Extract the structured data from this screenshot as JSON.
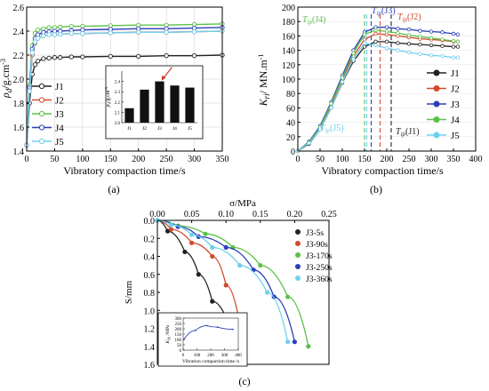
{
  "chart_data": [
    {
      "id": "a",
      "type": "line",
      "panel_label": "(a)",
      "xlabel": "Vibratory compaction time/s",
      "ylabel": "ρd/g.cm⁻³",
      "ylabel_main": "ρ",
      "ylabel_sub": "d",
      "ylabel_unit": "/g.cm",
      "ylabel_sup": "-3",
      "xlim": [
        0,
        350
      ],
      "ylim": [
        1.4,
        2.6
      ],
      "xticks": [
        0,
        50,
        100,
        150,
        200,
        250,
        300,
        350
      ],
      "yticks": [
        1.4,
        1.6,
        1.8,
        2.0,
        2.2,
        2.4,
        2.6
      ],
      "legend_position": "left-middle",
      "series": [
        {
          "name": "J1",
          "color": "#222222",
          "x": [
            0,
            5,
            10,
            15,
            20,
            30,
            40,
            50,
            60,
            80,
            100,
            150,
            200,
            250,
            300,
            350
          ],
          "y": [
            1.45,
            1.8,
            2.04,
            2.12,
            2.15,
            2.17,
            2.175,
            2.18,
            2.18,
            2.185,
            2.185,
            2.19,
            2.19,
            2.195,
            2.195,
            2.2
          ]
        },
        {
          "name": "J2",
          "color": "#d24a2c",
          "x": [
            0,
            5,
            10,
            15,
            20,
            30,
            40,
            50,
            60,
            80,
            100,
            150,
            200,
            250,
            300,
            350
          ],
          "y": [
            1.45,
            1.9,
            2.2,
            2.3,
            2.34,
            2.36,
            2.37,
            2.37,
            2.375,
            2.38,
            2.38,
            2.385,
            2.39,
            2.39,
            2.395,
            2.4
          ]
        },
        {
          "name": "J3",
          "color": "#5cc04a",
          "x": [
            0,
            5,
            10,
            15,
            20,
            30,
            40,
            50,
            60,
            80,
            100,
            150,
            200,
            250,
            300,
            350
          ],
          "y": [
            1.45,
            1.95,
            2.28,
            2.38,
            2.41,
            2.42,
            2.43,
            2.43,
            2.435,
            2.44,
            2.44,
            2.445,
            2.45,
            2.45,
            2.455,
            2.46
          ]
        },
        {
          "name": "J4",
          "color": "#2b3fb8",
          "x": [
            0,
            5,
            10,
            15,
            20,
            30,
            40,
            50,
            60,
            80,
            100,
            150,
            200,
            250,
            300,
            350
          ],
          "y": [
            1.45,
            1.93,
            2.25,
            2.34,
            2.37,
            2.39,
            2.395,
            2.4,
            2.4,
            2.405,
            2.41,
            2.415,
            2.42,
            2.42,
            2.425,
            2.43
          ]
        },
        {
          "name": "J5",
          "color": "#6fd0ee",
          "x": [
            0,
            5,
            10,
            15,
            20,
            30,
            40,
            50,
            60,
            80,
            100,
            150,
            200,
            250,
            300,
            350
          ],
          "y": [
            1.45,
            1.9,
            2.22,
            2.31,
            2.34,
            2.36,
            2.37,
            2.37,
            2.375,
            2.38,
            2.38,
            2.385,
            2.39,
            2.39,
            2.395,
            2.4
          ]
        }
      ],
      "inset": {
        "type": "bar",
        "ylabel": "ρd/g.cm⁻³",
        "ylabel_main": "ρ",
        "ylabel_sub": "d",
        "ylabel_unit": "/g.cm",
        "ylabel_sup": "-3",
        "categories": [
          "J1",
          "J2",
          "J3",
          "J4",
          "J5"
        ],
        "values": [
          2.14,
          2.32,
          2.4,
          2.36,
          2.34
        ],
        "ylim": [
          2.0,
          2.5
        ],
        "yticks": [
          2.0,
          2.1,
          2.2,
          2.3,
          2.4
        ],
        "annotation": "arrow pointing to J3 bar"
      }
    },
    {
      "id": "b",
      "type": "line",
      "panel_label": "(b)",
      "xlabel": "Vibratory compaction time/s",
      "ylabel": "Kri/ MN.m⁻¹",
      "ylabel_main": "K",
      "ylabel_sub": "ri",
      "ylabel_unit": "/ MN.m",
      "ylabel_sup": "-1",
      "xlim": [
        0,
        400
      ],
      "ylim": [
        0,
        200
      ],
      "xticks": [
        0,
        50,
        100,
        150,
        200,
        250,
        300,
        350,
        400
      ],
      "yticks": [
        0,
        20,
        40,
        60,
        80,
        100,
        120,
        140,
        160,
        180,
        200
      ],
      "legend_position": "right-middle",
      "series": [
        {
          "name": "J1",
          "color": "#222222",
          "x": [
            0,
            25,
            50,
            75,
            100,
            125,
            150,
            175,
            200,
            225,
            250,
            275,
            300,
            325,
            350,
            360
          ],
          "y": [
            0,
            10,
            30,
            60,
            95,
            125,
            145,
            152,
            152,
            150,
            149,
            148,
            147,
            146,
            145,
            145
          ]
        },
        {
          "name": "J2",
          "color": "#d24a2c",
          "x": [
            0,
            25,
            50,
            75,
            100,
            125,
            150,
            175,
            200,
            225,
            250,
            275,
            300,
            325,
            350,
            360
          ],
          "y": [
            0,
            12,
            32,
            64,
            100,
            132,
            155,
            163,
            162,
            160,
            158,
            156,
            155,
            154,
            152,
            152
          ]
        },
        {
          "name": "J3",
          "color": "#2b3fb8",
          "x": [
            0,
            25,
            50,
            75,
            100,
            125,
            150,
            175,
            200,
            225,
            250,
            275,
            300,
            325,
            350,
            360
          ],
          "y": [
            0,
            13,
            35,
            68,
            105,
            140,
            165,
            172,
            172,
            170,
            169,
            167,
            166,
            165,
            163,
            162
          ]
        },
        {
          "name": "J4",
          "color": "#5cc04a",
          "x": [
            0,
            25,
            50,
            75,
            100,
            125,
            150,
            175,
            200,
            225,
            250,
            275,
            300,
            325,
            350,
            360
          ],
          "y": [
            0,
            12,
            33,
            66,
            102,
            136,
            162,
            168,
            166,
            164,
            161,
            159,
            157,
            155,
            153,
            152
          ]
        },
        {
          "name": "J5",
          "color": "#6fd0ee",
          "x": [
            0,
            25,
            50,
            75,
            100,
            125,
            150,
            175,
            200,
            225,
            250,
            275,
            300,
            325,
            350,
            360
          ],
          "y": [
            0,
            11,
            30,
            60,
            96,
            128,
            150,
            147,
            143,
            140,
            137,
            135,
            133,
            132,
            130,
            130
          ]
        }
      ],
      "markers": [
        {
          "label_main": "T",
          "label_sub": "ip",
          "label_series": "(J4)",
          "x": 150,
          "color": "#5cc04a"
        },
        {
          "label_main": "T",
          "label_sub": "ip",
          "label_series": "(J3)",
          "x": 165,
          "color": "#2b3fb8"
        },
        {
          "label_main": "T",
          "label_sub": "ip",
          "label_series": "(J2)",
          "x": 185,
          "color": "#d24a2c"
        },
        {
          "label_main": "T",
          "label_sub": "ip",
          "label_series": "(J5)",
          "x": 155,
          "color": "#6fd0ee"
        },
        {
          "label_main": "T",
          "label_sub": "ip",
          "label_series": "(J1)",
          "x": 210,
          "color": "#222222"
        }
      ]
    },
    {
      "id": "c",
      "type": "scatter",
      "panel_label": "(c)",
      "xlabel": "σ/MPa",
      "ylabel": "S/mm",
      "x_axis_position": "top",
      "y_axis_inverted": true,
      "xlim": [
        0,
        0.25
      ],
      "ylim": [
        0,
        1.6
      ],
      "xticks": [
        0.0,
        0.05,
        0.1,
        0.15,
        0.2,
        0.25
      ],
      "xticklabels": [
        "0.00",
        "0.05",
        "0.10",
        "0.15",
        "0.20",
        "0.25"
      ],
      "yticks": [
        0.0,
        0.2,
        0.4,
        0.6,
        0.8,
        1.0,
        1.2,
        1.4,
        1.6
      ],
      "legend_position": "right",
      "series": [
        {
          "name": "J3-5s",
          "color": "#222222",
          "x": [
            0,
            0.015,
            0.04,
            0.06,
            0.08,
            0.1
          ],
          "y": [
            0,
            0.12,
            0.35,
            0.6,
            0.9,
            1.08
          ]
        },
        {
          "name": "J3-90s",
          "color": "#d24a2c",
          "x": [
            0,
            0.02,
            0.05,
            0.08,
            0.1,
            0.12
          ],
          "y": [
            0,
            0.1,
            0.25,
            0.4,
            0.72,
            1.15
          ]
        },
        {
          "name": "J3-170s",
          "color": "#5cc04a",
          "x": [
            0,
            0.03,
            0.07,
            0.11,
            0.15,
            0.19,
            0.22
          ],
          "y": [
            0,
            0.06,
            0.15,
            0.3,
            0.5,
            0.85,
            1.4
          ]
        },
        {
          "name": "J3-250s",
          "color": "#2b3fb8",
          "x": [
            0,
            0.03,
            0.06,
            0.1,
            0.14,
            0.17,
            0.2
          ],
          "y": [
            0,
            0.07,
            0.18,
            0.3,
            0.55,
            0.85,
            1.35
          ]
        },
        {
          "name": "J3-360s",
          "color": "#6fd0ee",
          "x": [
            0,
            0.02,
            0.05,
            0.08,
            0.12,
            0.16,
            0.19
          ],
          "y": [
            0,
            0.05,
            0.16,
            0.3,
            0.5,
            0.8,
            1.35
          ]
        }
      ],
      "inset": {
        "type": "line",
        "xlabel": "Vibration compaction time /s",
        "ylabel": "K₃₀ /MPa",
        "ylabel_main": "K",
        "ylabel_sub": "30",
        "ylabel_unit": " /MPa",
        "xlim": [
          0,
          400
        ],
        "ylim": [
          0,
          300
        ],
        "xticks": [
          0,
          100,
          200,
          300,
          400
        ],
        "yticks": [
          0,
          50,
          100,
          150,
          200,
          250,
          300
        ],
        "x": [
          5,
          90,
          170,
          250,
          360
        ],
        "y": [
          100,
          185,
          230,
          215,
          195
        ],
        "color": "#2b3fb8"
      }
    }
  ]
}
